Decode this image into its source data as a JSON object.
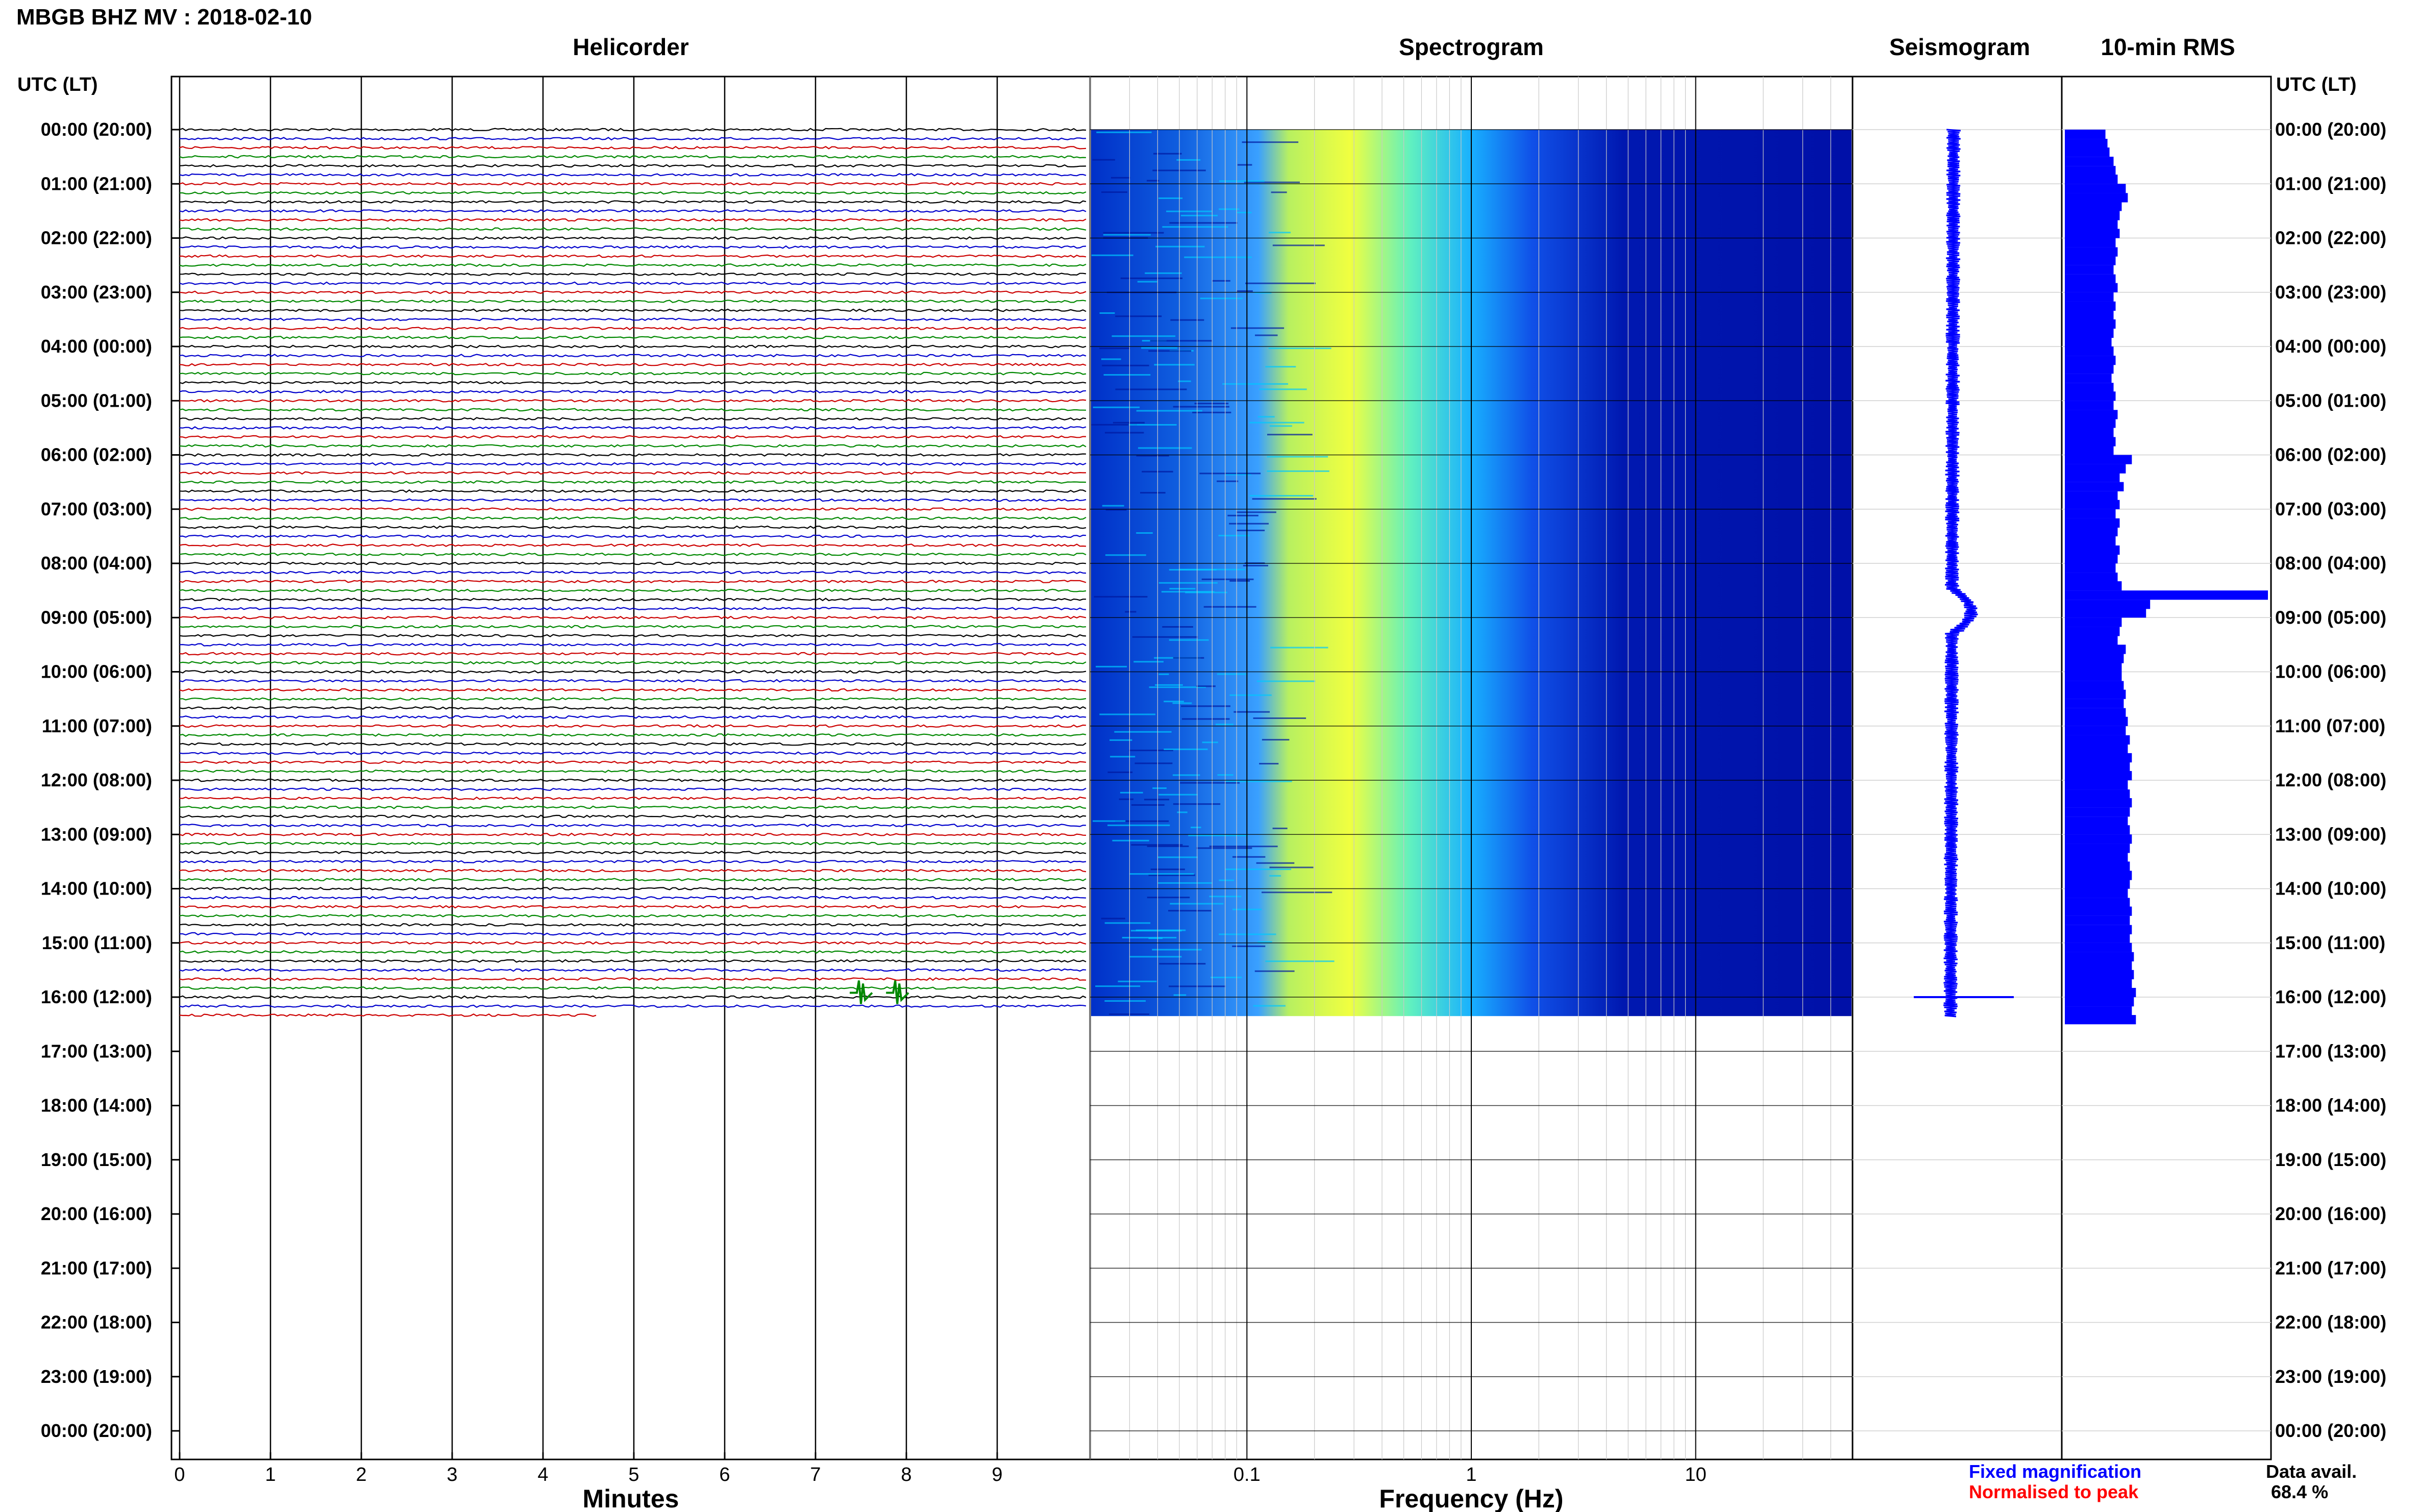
{
  "header": {
    "title": "MBGB BHZ MV : 2018-02-10",
    "left_axis_label": "UTC (LT)",
    "right_axis_label": "UTC (LT)"
  },
  "panels": {
    "helicorder": {
      "title": "Helicorder",
      "xlabel": "Minutes"
    },
    "spectrogram": {
      "title": "Spectrogram",
      "xlabel": "Frequency (Hz)"
    },
    "seismogram": {
      "title": "Seismogram"
    },
    "rms": {
      "title": "10-min RMS"
    }
  },
  "legend": {
    "fixed": "Fixed magnification",
    "normalised": "Normalised to peak",
    "fixed_color": "#0000ff",
    "normalised_color": "#ff0000"
  },
  "availability": {
    "label": "Data avail.",
    "value": "68.4 %"
  },
  "colors": {
    "trace_cycle": [
      "#000000",
      "#0000cc",
      "#cc0000",
      "#008800"
    ],
    "spectrogram_low": "#0000a0",
    "spectrogram_high": "#ffff00",
    "rms_bar": "#0000ff"
  },
  "chart_data": {
    "type": "heatmap",
    "time_labels": [
      "00:00 (20:00)",
      "01:00 (21:00)",
      "02:00 (22:00)",
      "03:00 (23:00)",
      "04:00 (00:00)",
      "05:00 (01:00)",
      "06:00 (02:00)",
      "07:00 (03:00)",
      "08:00 (04:00)",
      "09:00 (05:00)",
      "10:00 (06:00)",
      "11:00 (07:00)",
      "12:00 (08:00)",
      "13:00 (09:00)",
      "14:00 (10:00)",
      "15:00 (11:00)",
      "16:00 (12:00)",
      "17:00 (13:00)",
      "18:00 (14:00)",
      "19:00 (15:00)",
      "20:00 (16:00)",
      "21:00 (17:00)",
      "22:00 (18:00)",
      "23:00 (19:00)",
      "00:00 (20:00)"
    ],
    "time_range_hours": [
      0,
      24
    ],
    "helicorder": {
      "x_ticks": [
        "0",
        "1",
        "2",
        "3",
        "4",
        "5",
        "6",
        "7",
        "8",
        "9"
      ],
      "xlim_minutes": [
        0,
        10
      ],
      "data_end_hour": 16.5,
      "last_line_end_minute": 4.6,
      "event_markers": [
        {
          "hour": 15.92,
          "minute": 7.5
        },
        {
          "hour": 15.92,
          "minute": 7.9
        }
      ]
    },
    "spectrogram": {
      "x_ticks": [
        "0.1",
        "1",
        "10"
      ],
      "xlim_hz": [
        0.02,
        50
      ],
      "log_scale": true,
      "data_end_hour": 16.35
    },
    "seismogram": {
      "data_end_hour": 16.35,
      "event_hours": [
        8.6,
        16.0
      ]
    },
    "rms": {
      "times_hours": [
        0,
        0.17,
        0.33,
        0.5,
        0.67,
        0.83,
        1,
        1.17,
        1.33,
        1.5,
        1.67,
        1.83,
        2,
        2.17,
        2.33,
        2.5,
        2.67,
        2.83,
        3,
        3.17,
        3.33,
        3.5,
        3.67,
        3.83,
        4,
        4.17,
        4.33,
        4.5,
        4.67,
        4.83,
        5,
        5.17,
        5.33,
        5.5,
        5.67,
        5.83,
        6,
        6.17,
        6.33,
        6.5,
        6.67,
        6.83,
        7,
        7.17,
        7.33,
        7.5,
        7.67,
        7.83,
        8,
        8.17,
        8.33,
        8.5,
        8.67,
        8.83,
        9,
        9.17,
        9.33,
        9.5,
        9.67,
        9.83,
        10,
        10.17,
        10.33,
        10.5,
        10.67,
        10.83,
        11,
        11.17,
        11.33,
        11.5,
        11.67,
        11.83,
        12,
        12.17,
        12.33,
        12.5,
        12.67,
        12.83,
        13,
        13.17,
        13.33,
        13.5,
        13.67,
        13.83,
        14,
        14.17,
        14.33,
        14.5,
        14.67,
        14.83,
        15,
        15.17,
        15.33,
        15.5,
        15.67,
        15.83,
        16,
        16.17,
        16.33
      ],
      "values": [
        0.2,
        0.21,
        0.22,
        0.24,
        0.25,
        0.26,
        0.3,
        0.31,
        0.28,
        0.27,
        0.26,
        0.27,
        0.25,
        0.26,
        0.25,
        0.24,
        0.25,
        0.26,
        0.24,
        0.25,
        0.24,
        0.25,
        0.24,
        0.23,
        0.24,
        0.25,
        0.24,
        0.23,
        0.24,
        0.25,
        0.24,
        0.26,
        0.25,
        0.24,
        0.25,
        0.24,
        0.33,
        0.3,
        0.27,
        0.29,
        0.26,
        0.27,
        0.25,
        0.27,
        0.26,
        0.25,
        0.27,
        0.26,
        0.25,
        0.26,
        0.28,
        1.0,
        0.42,
        0.4,
        0.28,
        0.27,
        0.26,
        0.3,
        0.29,
        0.28,
        0.28,
        0.29,
        0.3,
        0.29,
        0.3,
        0.31,
        0.3,
        0.32,
        0.31,
        0.33,
        0.32,
        0.33,
        0.31,
        0.32,
        0.33,
        0.32,
        0.31,
        0.32,
        0.33,
        0.32,
        0.31,
        0.32,
        0.33,
        0.32,
        0.31,
        0.32,
        0.33,
        0.32,
        0.33,
        0.32,
        0.33,
        0.34,
        0.33,
        0.34,
        0.33,
        0.35,
        0.34,
        0.33,
        0.35,
        0.34,
        0.33
      ],
      "xlim": [
        0,
        1
      ]
    }
  }
}
